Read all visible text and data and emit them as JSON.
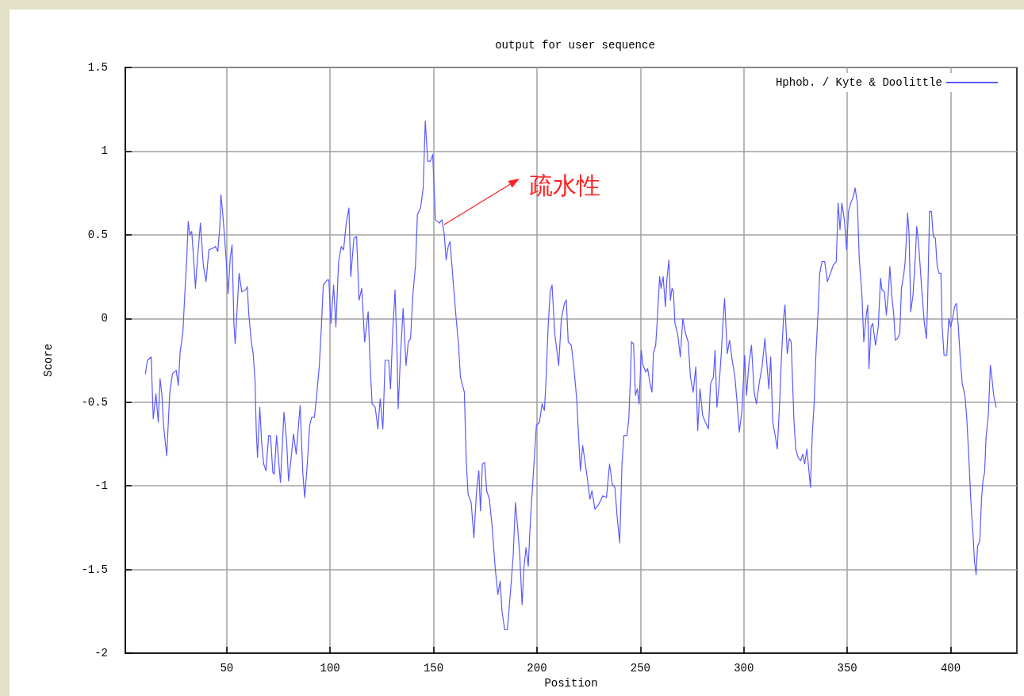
{
  "chart_data": {
    "type": "line",
    "title": "output for user sequence",
    "xlabel": "Position",
    "ylabel": "Score",
    "xlim": [
      1,
      432
    ],
    "xticks": [
      50,
      100,
      150,
      200,
      250,
      300,
      350,
      400
    ],
    "ylim": [
      -2,
      1.5
    ],
    "yticks": [
      -2,
      -1.5,
      -1,
      -0.5,
      0,
      0.5,
      1,
      1.5
    ],
    "grid": true,
    "legend": "top right",
    "marker": "none",
    "line_style": "solid",
    "annotations": [
      "疏水性"
    ],
    "series": [
      {
        "name": "Hphob. / Kyte & Doolittle",
        "color": "#5a5aff",
        "x": [
          10.7,
          11.7,
          13.5,
          14.5,
          15.8,
          16.9,
          17.8,
          18.7,
          19.5,
          21.0,
          22.5,
          23.8,
          25.6,
          26.6,
          27.5,
          28.8,
          29.9,
          30.7,
          31.4,
          32.1,
          33.1,
          34.0,
          34.9,
          35.9,
          37.3,
          38.7,
          40.0,
          41.4,
          43.3,
          44.6,
          45.7,
          46.7,
          47.2,
          48.0,
          48.9,
          49.8,
          50.7,
          51.7,
          52.6,
          53.5,
          54.1,
          54.8,
          56.0,
          57.3,
          59.1,
          60.0,
          60.6,
          61.9,
          62.8,
          63.7,
          64.3,
          64.9,
          66.0,
          66.9,
          67.9,
          69.0,
          70.3,
          71.2,
          72.3,
          73.0,
          74.1,
          76.0,
          77.7,
          79.0,
          79.9,
          81.2,
          82.3,
          83.6,
          85.5,
          86.8,
          87.7,
          88.8,
          90.1,
          91.1,
          92.4,
          93.5,
          94.8,
          95.7,
          96.7,
          98.5,
          99.4,
          100.4,
          101.7,
          102.8,
          104.1,
          105.4,
          106.5,
          107.8,
          109.1,
          110.0,
          111.5,
          112.8,
          114.0,
          115.3,
          116.7,
          118.4,
          119.5,
          120.3,
          121.8,
          123.1,
          124.2,
          125.5,
          126.6,
          128.3,
          129.2,
          130.3,
          131.4,
          132.4,
          132.9,
          134.0,
          135.3,
          136.7,
          137.8,
          138.9,
          140.0,
          141.3,
          142.2,
          143.7,
          145.0,
          146.0,
          147.2,
          148.5,
          149.6,
          150.9,
          152.8,
          154.1,
          155.2,
          156.1,
          157.1,
          158.0,
          159.3,
          160.8,
          162.1,
          163.0,
          164.9,
          165.8,
          166.7,
          168.2,
          169.5,
          170.8,
          171.9,
          172.7,
          173.6,
          174.7,
          175.7,
          177.0,
          178.3,
          179.8,
          181.1,
          182.2,
          183.1,
          184.4,
          185.7,
          187.2,
          188.5,
          189.6,
          190.6,
          191.7,
          192.8,
          193.7,
          194.7,
          195.8,
          196.9,
          198.4,
          199.7,
          201.2,
          202.5,
          203.6,
          204.3,
          205.4,
          206.4,
          207.3,
          208.6,
          210.5,
          211.8,
          213.3,
          214.2,
          215.1,
          216.6,
          217.9,
          219.2,
          221.0,
          222.1,
          223.4,
          224.7,
          225.6,
          226.6,
          228.0,
          229.9,
          231.8,
          233.6,
          235.1,
          236.4,
          237.7,
          238.8,
          240.0,
          241.1,
          242.0,
          243.5,
          244.4,
          245.2,
          245.7,
          246.7,
          247.6,
          248.5,
          249.4,
          250.4,
          251.3,
          252.6,
          253.5,
          254.7,
          255.6,
          256.3,
          257.4,
          258.2,
          259.3,
          260.0,
          261.0,
          262.1,
          262.8,
          263.8,
          264.5,
          265.3,
          266.0,
          266.7,
          268.0,
          269.3,
          270.5,
          271.8,
          273.1,
          274.2,
          275.5,
          276.8,
          277.7,
          278.8,
          280.1,
          281.4,
          282.9,
          283.9,
          285.3,
          286.1,
          287.0,
          288.1,
          289.1,
          289.8,
          290.7,
          292.0,
          293.1,
          294.4,
          295.7,
          296.8,
          297.8,
          299.1,
          300.4,
          301.3,
          302.4,
          303.7,
          305.0,
          306.1,
          307.4,
          308.9,
          310.2,
          311.2,
          312.1,
          313.0,
          314.0,
          315.3,
          316.2,
          317.3,
          318.2,
          319.2,
          319.9,
          321.0,
          322.0,
          322.9,
          324.2,
          325.1,
          326.2,
          327.5,
          328.5,
          329.4,
          330.5,
          331.4,
          332.2,
          333.1,
          334.0,
          334.8,
          335.9,
          336.7,
          337.8,
          339.1,
          340.4,
          341.9,
          343.3,
          344.7,
          345.6,
          346.5,
          347.4,
          348.6,
          349.7,
          350.6,
          351.7,
          353.0,
          353.8,
          354.9,
          355.8,
          357.1,
          358.0,
          359.0,
          359.9,
          360.5,
          361.5,
          362.3,
          363.7,
          365.0,
          366.1,
          366.8,
          368.0,
          368.9,
          369.9,
          370.6,
          371.5,
          372.5,
          373.2,
          374.3,
          375.4,
          376.2,
          377.3,
          378.0,
          379.2,
          379.9,
          380.7,
          381.8,
          382.9,
          383.6,
          384.4,
          385.1,
          386.2,
          387.3,
          388.3,
          388.8,
          389.8,
          390.7,
          391.6,
          392.6,
          393.5,
          394.4,
          395.3,
          395.9,
          396.8,
          398.1,
          399.1,
          400.0,
          400.9,
          401.9,
          402.8,
          403.7,
          404.7,
          405.6,
          406.9,
          407.8,
          408.7,
          409.7,
          410.8,
          411.5,
          412.3,
          413.0,
          414.1,
          414.9,
          415.6,
          416.4,
          417.1,
          418.2,
          419.2,
          419.9,
          420.8,
          422.0
        ],
        "values": [
          -0.33,
          -0.25,
          -0.23,
          -0.6,
          -0.45,
          -0.62,
          -0.36,
          -0.46,
          -0.64,
          -0.82,
          -0.44,
          -0.33,
          -0.31,
          -0.4,
          -0.2,
          -0.09,
          0.18,
          0.36,
          0.58,
          0.5,
          0.52,
          0.36,
          0.18,
          0.36,
          0.57,
          0.32,
          0.22,
          0.41,
          0.42,
          0.43,
          0.4,
          0.55,
          0.74,
          0.64,
          0.5,
          0.34,
          0.15,
          0.36,
          0.44,
          -0.03,
          -0.15,
          0,
          0.27,
          0.16,
          0.17,
          0.19,
          0.04,
          -0.14,
          -0.21,
          -0.37,
          -0.67,
          -0.83,
          -0.53,
          -0.74,
          -0.87,
          -0.91,
          -0.7,
          -0.7,
          -0.92,
          -0.93,
          -0.7,
          -0.98,
          -0.56,
          -0.74,
          -0.97,
          -0.83,
          -0.69,
          -0.81,
          -0.52,
          -0.92,
          -1.07,
          -0.9,
          -0.64,
          -0.59,
          -0.59,
          -0.46,
          -0.28,
          -0.07,
          0.2,
          0.23,
          0.23,
          -0.03,
          0.2,
          -0.05,
          0.34,
          0.43,
          0.41,
          0.57,
          0.66,
          0.25,
          0.48,
          0.49,
          0.11,
          0.18,
          -0.14,
          0.04,
          -0.32,
          -0.51,
          -0.53,
          -0.66,
          -0.48,
          -0.66,
          -0.25,
          -0.25,
          -0.42,
          -0.07,
          0.17,
          -0.23,
          -0.54,
          -0.23,
          0.06,
          -0.28,
          -0.14,
          -0.12,
          0.14,
          0.32,
          0.62,
          0.66,
          0.78,
          1.18,
          0.94,
          0.94,
          0.98,
          0.59,
          0.57,
          0.59,
          0.5,
          0.35,
          0.43,
          0.46,
          0.25,
          0.02,
          -0.16,
          -0.35,
          -0.44,
          -0.85,
          -1.05,
          -1.1,
          -1.31,
          -1.03,
          -0.91,
          -1.15,
          -0.87,
          -0.86,
          -1.03,
          -1.08,
          -1.24,
          -1.49,
          -1.65,
          -1.57,
          -1.75,
          -1.86,
          -1.86,
          -1.63,
          -1.42,
          -1.1,
          -1.24,
          -1.42,
          -1.71,
          -1.49,
          -1.37,
          -1.48,
          -1.19,
          -0.9,
          -0.64,
          -0.62,
          -0.51,
          -0.55,
          -0.39,
          -0.05,
          0.16,
          0.2,
          -0.09,
          -0.28,
          0,
          0.09,
          0.11,
          -0.14,
          -0.16,
          -0.3,
          -0.48,
          -0.91,
          -0.76,
          -0.87,
          -0.99,
          -1.08,
          -1.03,
          -1.14,
          -1.11,
          -1.06,
          -1.07,
          -0.87,
          -0.99,
          -1.01,
          -1.19,
          -1.34,
          -0.87,
          -0.7,
          -0.7,
          -0.6,
          -0.35,
          -0.14,
          -0.15,
          -0.46,
          -0.42,
          -0.51,
          -0.19,
          -0.28,
          -0.32,
          -0.3,
          -0.39,
          -0.44,
          -0.21,
          -0.16,
          0,
          0.25,
          0.18,
          0.25,
          0.07,
          0.23,
          0.35,
          0.11,
          0.18,
          0.16,
          -0.03,
          -0.09,
          -0.23,
          0,
          -0.09,
          -0.14,
          -0.35,
          -0.44,
          -0.29,
          -0.67,
          -0.42,
          -0.58,
          -0.62,
          -0.66,
          -0.39,
          -0.35,
          -0.19,
          -0.53,
          -0.39,
          -0.21,
          -0.05,
          0.12,
          -0.21,
          -0.13,
          -0.25,
          -0.35,
          -0.51,
          -0.68,
          -0.55,
          -0.22,
          -0.46,
          -0.28,
          -0.16,
          -0.44,
          -0.51,
          -0.39,
          -0.28,
          -0.12,
          -0.28,
          -0.42,
          -0.23,
          -0.62,
          -0.71,
          -0.78,
          -0.51,
          -0.23,
          0,
          0.08,
          -0.21,
          -0.12,
          -0.14,
          -0.6,
          -0.78,
          -0.83,
          -0.85,
          -0.81,
          -0.87,
          -0.78,
          -0.9,
          -1.01,
          -0.69,
          -0.51,
          -0.23,
          0.04,
          0.27,
          0.34,
          0.34,
          0.22,
          0.27,
          0.32,
          0.34,
          0.69,
          0.53,
          0.69,
          0.59,
          0.41,
          0.64,
          0.69,
          0.73,
          0.78,
          0.69,
          0.36,
          0.14,
          -0.14,
          0,
          0.08,
          -0.3,
          -0.05,
          -0.03,
          -0.16,
          -0.05,
          0.24,
          0.17,
          0.16,
          0.02,
          0.16,
          0.31,
          0.14,
          0.02,
          -0.13,
          -0.12,
          -0.09,
          0.18,
          0.26,
          0.34,
          0.63,
          0.5,
          0.04,
          0.14,
          0.36,
          0.55,
          0.46,
          0.34,
          0.14,
          -0.03,
          -0.12,
          0.07,
          0.64,
          0.64,
          0.49,
          0.48,
          0.31,
          0.27,
          0.27,
          -0.05,
          -0.22,
          -0.22,
          0,
          -0.05,
          0,
          0.07,
          0.09,
          -0.05,
          -0.25,
          -0.39,
          -0.46,
          -0.6,
          -0.81,
          -1.08,
          -1.29,
          -1.45,
          -1.53,
          -1.36,
          -1.33,
          -1.08,
          -0.97,
          -0.92,
          -0.71,
          -0.58,
          -0.28,
          -0.35,
          -0.46,
          -0.53
        ]
      }
    ]
  }
}
